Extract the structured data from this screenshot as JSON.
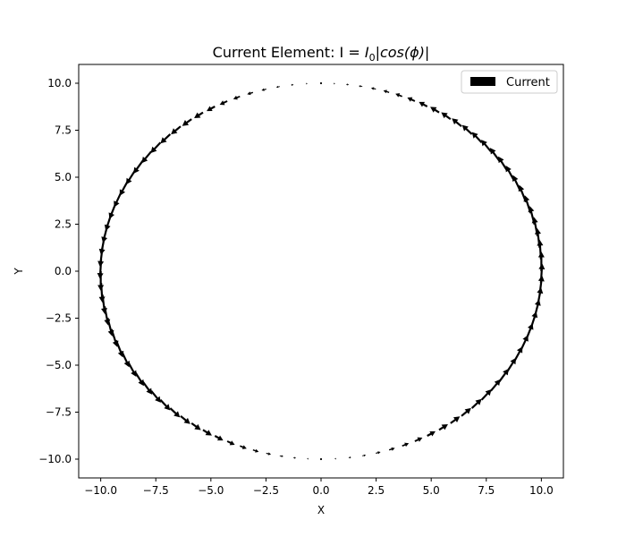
{
  "chart_data": {
    "type": "quiver",
    "title": "Current Element: I = I₀|cos(ϕ)|",
    "title_parts": {
      "prefix": "Current Element: I = ",
      "symbol": "I",
      "subscript": "0",
      "expr": "|cos(ϕ)|"
    },
    "xlabel": "X",
    "ylabel": "Y",
    "xlim": [
      -11.0,
      11.0
    ],
    "ylim": [
      -11.0,
      11.0
    ],
    "xticks": [
      -10.0,
      -7.5,
      -5.0,
      -2.5,
      0.0,
      2.5,
      5.0,
      7.5,
      10.0
    ],
    "xtick_labels": [
      "−10.0",
      "−7.5",
      "−5.0",
      "−2.5",
      "0.0",
      "2.5",
      "5.0",
      "7.5",
      "10.0"
    ],
    "yticks": [
      10.0,
      7.5,
      5.0,
      2.5,
      0.0,
      -2.5,
      -5.0,
      -7.5,
      -10.0
    ],
    "ytick_labels": [
      "10.0",
      "7.5",
      "5.0",
      "2.5",
      "0.0",
      "−2.5",
      "−5.0",
      "−7.5",
      "−10.0"
    ],
    "grid": false,
    "legend": {
      "label": "Current",
      "placement": "upper right"
    },
    "color": "#000000",
    "series": [
      {
        "name": "Current",
        "ring_radius": 10,
        "arrow_count": 100,
        "magnitude": "|cos(ϕ)|",
        "direction": "counterclockwise tangent"
      }
    ]
  }
}
